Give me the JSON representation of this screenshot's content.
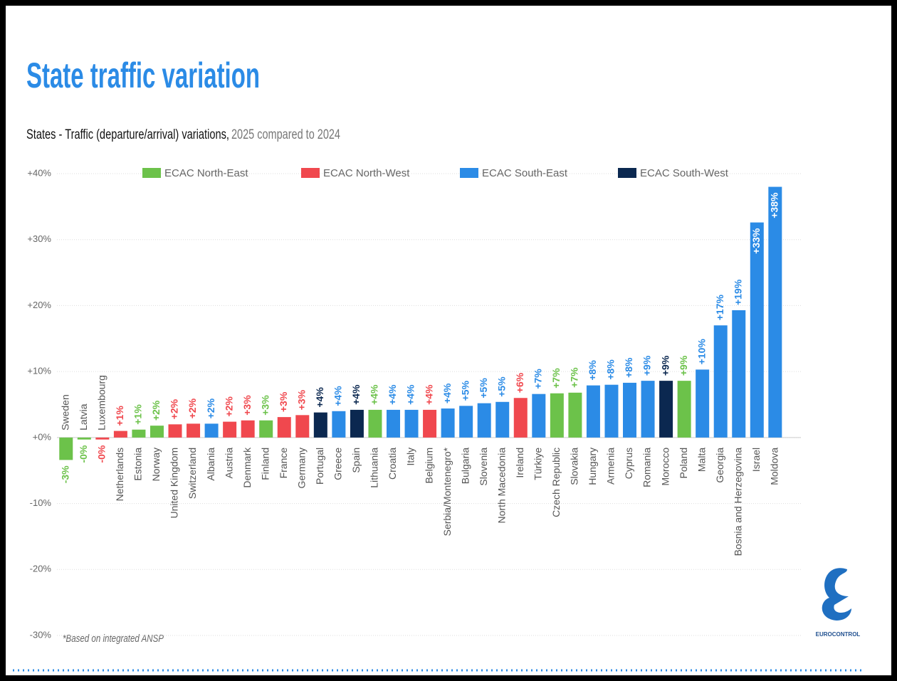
{
  "chart_data": {
    "type": "bar",
    "title": "State traffic variation",
    "subtitle": "States - Traffic (departure/arrival) variations,",
    "subtitle_period": "2025 compared to 2024",
    "note": "*Based on integrated ANSP",
    "logo_text": "EUROCONTROL",
    "legend": [
      {
        "name": "ECAC North-East",
        "color": "#6cc24a"
      },
      {
        "name": "ECAC North-West",
        "color": "#f0484e"
      },
      {
        "name": "ECAC South-East",
        "color": "#2b8be6"
      },
      {
        "name": "ECAC South-West",
        "color": "#0b2850"
      }
    ],
    "categories": [
      "Sweden",
      "Latvia",
      "Luxembourg",
      "Netherlands",
      "Estonia",
      "Norway",
      "United Kingdom",
      "Switzerland",
      "Albania",
      "Austria",
      "Denmark",
      "Finland",
      "France",
      "Germany",
      "Portugal",
      "Greece",
      "Spain",
      "Lithuania",
      "Croatia",
      "Italy",
      "Belgium",
      "Serbia/Montenegro*",
      "Bulgaria",
      "Slovenia",
      "North Macedonia",
      "Ireland",
      "Türkiye",
      "Czech Republic",
      "Slovakia",
      "Hungary",
      "Armenia",
      "Cyprus",
      "Romania",
      "Morocco",
      "Poland",
      "Malta",
      "Georgia",
      "Bosnia and Herzegovina",
      "Israel",
      "Moldova"
    ],
    "values": [
      -3.4,
      -0.3,
      -0.3,
      1.0,
      1.2,
      1.8,
      2.0,
      2.1,
      2.1,
      2.4,
      2.6,
      2.6,
      3.1,
      3.4,
      3.8,
      4.0,
      4.2,
      4.2,
      4.2,
      4.2,
      4.2,
      4.4,
      4.8,
      5.2,
      5.4,
      6.0,
      6.6,
      6.7,
      6.8,
      7.9,
      8.0,
      8.3,
      8.6,
      8.6,
      8.6,
      10.3,
      17.0,
      19.3,
      32.6,
      38.0
    ],
    "value_labels": [
      "-3%",
      "-0%",
      "-0%",
      "+1%",
      "+1%",
      "+2%",
      "+2%",
      "+2%",
      "+2%",
      "+2%",
      "+3%",
      "+3%",
      "+3%",
      "+3%",
      "+4%",
      "+4%",
      "+4%",
      "+4%",
      "+4%",
      "+4%",
      "+4%",
      "+4%",
      "+5%",
      "+5%",
      "+5%",
      "+6%",
      "+7%",
      "+7%",
      "+7%",
      "+8%",
      "+8%",
      "+8%",
      "+9%",
      "+9%",
      "+9%",
      "+10%",
      "+17%",
      "+19%",
      "+33%",
      "+38%"
    ],
    "colors": [
      "#6cc24a",
      "#6cc24a",
      "#f0484e",
      "#f0484e",
      "#6cc24a",
      "#6cc24a",
      "#f0484e",
      "#f0484e",
      "#2b8be6",
      "#f0484e",
      "#f0484e",
      "#6cc24a",
      "#f0484e",
      "#f0484e",
      "#0b2850",
      "#2b8be6",
      "#0b2850",
      "#6cc24a",
      "#2b8be6",
      "#2b8be6",
      "#f0484e",
      "#2b8be6",
      "#2b8be6",
      "#2b8be6",
      "#2b8be6",
      "#f0484e",
      "#2b8be6",
      "#6cc24a",
      "#6cc24a",
      "#2b8be6",
      "#2b8be6",
      "#2b8be6",
      "#2b8be6",
      "#0b2850",
      "#6cc24a",
      "#2b8be6",
      "#2b8be6",
      "#2b8be6",
      "#2b8be6",
      "#2b8be6"
    ],
    "ylim": [
      -30,
      40
    ],
    "yticks": [
      {
        "value": -30,
        "label": "-30%"
      },
      {
        "value": -20,
        "label": "-20%"
      },
      {
        "value": -10,
        "label": "-10%"
      },
      {
        "value": 0,
        "label": "+0%"
      },
      {
        "value": 10,
        "label": "+10%"
      },
      {
        "value": 20,
        "label": "+20%"
      },
      {
        "value": 30,
        "label": "+30%"
      },
      {
        "value": 40,
        "label": "+40%"
      }
    ],
    "grid": true
  }
}
